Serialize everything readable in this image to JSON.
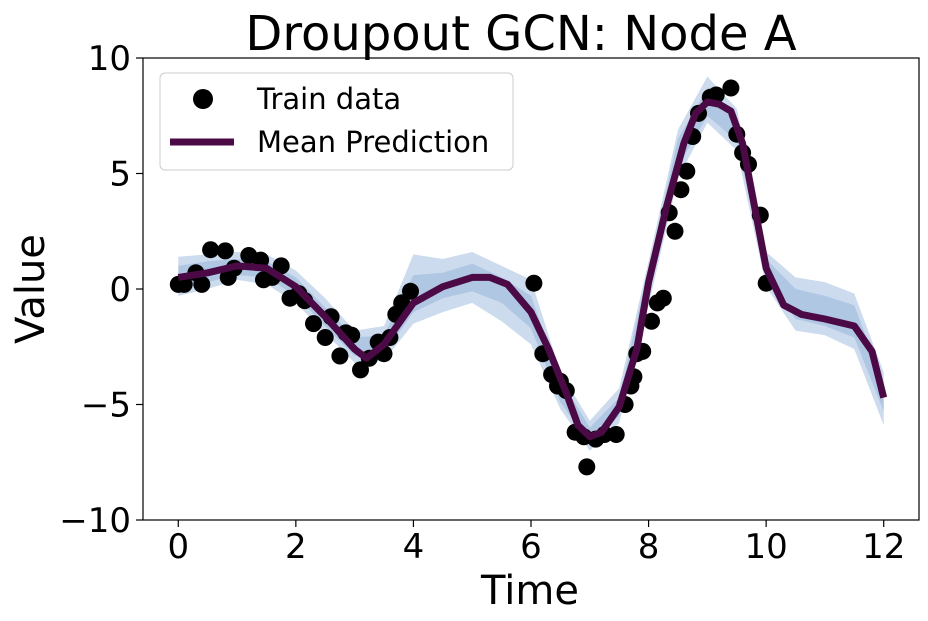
{
  "chart_data": {
    "type": "line",
    "title": "Droupout GCN: Node A",
    "xlabel": "Time",
    "ylabel": "Value",
    "xlim": [
      -0.6,
      12.6
    ],
    "ylim": [
      -10,
      10
    ],
    "xticks": [
      0,
      2,
      4,
      6,
      8,
      10,
      12
    ],
    "xtick_labels": [
      "0",
      "2",
      "4",
      "6",
      "8",
      "10",
      "12"
    ],
    "yticks": [
      -10,
      -5,
      0,
      5,
      10
    ],
    "ytick_labels": [
      "−10",
      "−5",
      "0",
      "5",
      "10"
    ],
    "grid": false,
    "legend_position": "top-left",
    "colors": {
      "train": "#000000",
      "mean": "#4b0a45",
      "band": "#8fb0d6"
    },
    "series": [
      {
        "name": "Train data",
        "kind": "scatter",
        "x": [
          0.0,
          0.1,
          0.3,
          0.4,
          0.55,
          0.8,
          0.85,
          0.95,
          1.2,
          1.4,
          1.45,
          1.6,
          1.75,
          1.9,
          2.05,
          2.15,
          2.3,
          2.5,
          2.6,
          2.75,
          2.85,
          2.95,
          3.1,
          3.25,
          3.4,
          3.5,
          3.6,
          3.7,
          3.8,
          3.95,
          6.05,
          6.2,
          6.35,
          6.45,
          6.5,
          6.6,
          6.75,
          6.9,
          6.95,
          7.1,
          7.25,
          7.45,
          7.6,
          7.7,
          7.75,
          7.8,
          7.9,
          8.05,
          8.15,
          8.25,
          8.35,
          8.45,
          8.55,
          8.65,
          8.75,
          8.85,
          9.05,
          9.15,
          9.4,
          9.5,
          9.6,
          9.7,
          9.9,
          10.0
        ],
        "y": [
          0.2,
          0.2,
          0.7,
          0.2,
          1.7,
          1.65,
          0.5,
          0.9,
          1.45,
          1.25,
          0.4,
          0.5,
          1.0,
          -0.4,
          -0.2,
          -0.5,
          -1.5,
          -2.1,
          -1.2,
          -2.9,
          -1.9,
          -2.0,
          -3.5,
          -3.0,
          -2.3,
          -2.8,
          -2.1,
          -1.1,
          -0.6,
          -0.1,
          0.25,
          -2.8,
          -3.7,
          -4.2,
          -4.0,
          -4.4,
          -6.2,
          -6.4,
          -7.7,
          -6.5,
          -6.3,
          -6.3,
          -5.0,
          -4.2,
          -3.8,
          -2.8,
          -2.7,
          -1.4,
          -0.6,
          -0.4,
          3.3,
          2.5,
          4.3,
          5.1,
          6.6,
          7.6,
          8.3,
          8.4,
          8.7,
          6.7,
          5.9,
          5.4,
          3.2,
          0.25
        ]
      },
      {
        "name": "Mean Prediction",
        "kind": "line",
        "x": [
          0,
          0.5,
          1.0,
          1.5,
          2.0,
          2.5,
          3.0,
          3.2,
          3.5,
          4.0,
          4.5,
          5.0,
          5.3,
          5.6,
          6.0,
          6.3,
          6.6,
          6.8,
          7.0,
          7.2,
          7.5,
          7.8,
          8.0,
          8.3,
          8.6,
          8.8,
          9.0,
          9.2,
          9.4,
          9.6,
          9.8,
          10.0,
          10.3,
          10.6,
          11.0,
          11.5,
          11.8,
          12.0
        ],
        "y": [
          0.5,
          0.7,
          1.0,
          0.9,
          0.1,
          -1.2,
          -2.6,
          -3.0,
          -2.4,
          -0.6,
          0.1,
          0.5,
          0.5,
          0.2,
          -1.0,
          -2.6,
          -4.5,
          -5.9,
          -6.4,
          -6.2,
          -5.1,
          -2.6,
          0.3,
          3.5,
          6.3,
          7.6,
          8.1,
          8.0,
          7.7,
          6.3,
          3.6,
          0.9,
          -0.7,
          -1.1,
          -1.3,
          -1.6,
          -2.7,
          -4.7
        ]
      }
    ],
    "bands": [
      {
        "x": [
          0,
          0.5,
          1.0,
          1.5,
          2.0,
          2.5,
          3.0,
          3.5,
          4.0,
          4.5,
          5.0,
          5.5,
          6.0,
          6.5,
          7.0,
          7.5,
          8.0,
          8.5,
          9.0,
          9.5,
          10.0,
          10.5,
          11.0,
          11.5,
          12.0
        ],
        "lower": [
          -0.3,
          0.0,
          0.4,
          0.2,
          -0.6,
          -1.9,
          -3.2,
          -3.1,
          -1.5,
          -1.0,
          -0.6,
          -1.4,
          -2.4,
          -5.2,
          -7.0,
          -5.8,
          -0.7,
          4.8,
          7.2,
          6.0,
          0.1,
          -1.8,
          -2.0,
          -2.6,
          -5.9
        ],
        "upper": [
          1.4,
          1.5,
          1.6,
          1.5,
          0.8,
          -0.4,
          -1.8,
          -1.6,
          1.5,
          1.3,
          1.6,
          1.0,
          0.4,
          -3.6,
          -5.7,
          -4.3,
          1.2,
          6.9,
          9.2,
          7.8,
          1.6,
          0.5,
          0.3,
          -0.2,
          -3.6
        ]
      },
      {
        "x": [
          0,
          0.5,
          1.0,
          1.5,
          2.0,
          2.5,
          3.0,
          3.5,
          4.0,
          4.5,
          5.0,
          5.5,
          6.0,
          6.5,
          7.0,
          7.5,
          8.0,
          8.5,
          9.0,
          9.5,
          10.0,
          10.5,
          11.0,
          11.5,
          12.0
        ],
        "lower": [
          0.0,
          0.3,
          0.6,
          0.5,
          -0.3,
          -1.6,
          -2.9,
          -2.8,
          -1.0,
          -0.4,
          -0.1,
          -0.6,
          -1.7,
          -4.9,
          -6.7,
          -5.5,
          -0.3,
          5.3,
          7.5,
          6.4,
          0.5,
          -1.3,
          -1.6,
          -2.1,
          -5.3
        ],
        "upper": [
          1.0,
          1.2,
          1.3,
          1.2,
          0.5,
          -0.8,
          -2.1,
          -2.0,
          0.6,
          0.7,
          1.1,
          0.5,
          -0.3,
          -3.9,
          -6.0,
          -4.7,
          0.9,
          6.5,
          8.7,
          7.3,
          1.3,
          0.0,
          -0.3,
          -0.7,
          -4.1
        ]
      }
    ]
  }
}
